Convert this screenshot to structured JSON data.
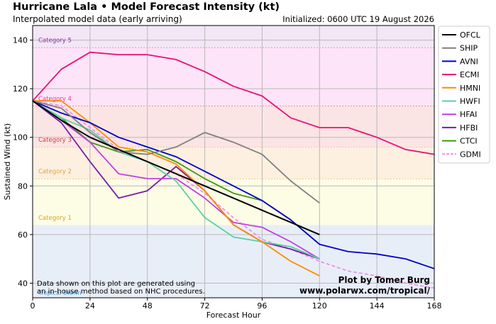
{
  "header": {
    "title": "Hurricane Lala • Model Forecast Intensity (kt)",
    "subtitle": "Interpolated model data (early arriving)",
    "initialized": "Initialized: 0600 UTC 19 August 2026"
  },
  "footer": {
    "note_line1": "Data shown on this plot are generated using",
    "note_line2": "an in-house method based on NHC procedures.",
    "credit_line1": "Plot by Tomer Burg",
    "credit_line2": "www.polarwx.com/tropical/"
  },
  "chart_data": {
    "type": "line",
    "title": "Hurricane Lala • Model Forecast Intensity (kt)",
    "subtitle": "Interpolated model data (early arriving)",
    "xlabel": "Forecast Hour",
    "ylabel": "Sustained Wind (kt)",
    "xlim": [
      0,
      168
    ],
    "ylim": [
      34,
      146
    ],
    "xticks": [
      0,
      24,
      48,
      72,
      96,
      120,
      144,
      168
    ],
    "yticks": [
      40,
      60,
      80,
      100,
      120,
      140
    ],
    "grid": true,
    "legend_position": "right outside",
    "bands": [
      {
        "label": "Tropical Storm",
        "from": 34,
        "to": 64,
        "color": "#e8eef8",
        "line": 34,
        "text_color": "#5a9fd4"
      },
      {
        "label": "Category 1",
        "from": 64,
        "to": 83,
        "color": "#fdfde6",
        "line": 83,
        "text_color": "#e0a020"
      },
      {
        "label": "Category 2",
        "from": 83,
        "to": 96,
        "color": "#fdf0e0",
        "line": 96,
        "text_color": "#e0a040"
      },
      {
        "label": "Category 3",
        "from": 96,
        "to": 113,
        "color": "#fbe4e4",
        "line": 113,
        "text_color": "#d04040"
      },
      {
        "label": "Category 4",
        "from": 113,
        "to": 137,
        "color": "#fde4f8",
        "line": 137,
        "text_color": "#e040a0"
      },
      {
        "label": "Category 5",
        "from": 137,
        "to": 146,
        "color": "#f3e6f6",
        "line": null,
        "text_color": "#9030a0"
      }
    ],
    "band_label_y": {
      "Tropical Storm": 36,
      "Category 1": 67,
      "Category 2": 86,
      "Category 3": 99,
      "Category 4": 116,
      "Category 5": 140
    },
    "series": [
      {
        "name": "OFCL",
        "color": "#000000",
        "dashed": false,
        "x": [
          0,
          12,
          24,
          36,
          48,
          60,
          72,
          84,
          96,
          108,
          120
        ],
        "y": [
          115,
          107,
          100,
          95,
          90,
          85,
          80,
          75,
          70,
          65,
          60
        ]
      },
      {
        "name": "SHIP",
        "color": "#808080",
        "dashed": false,
        "x": [
          0,
          12,
          24,
          36,
          48,
          60,
          72,
          84,
          96,
          108,
          120
        ],
        "y": [
          115,
          112,
          102,
          94,
          93,
          96,
          102,
          98,
          93,
          82,
          73
        ]
      },
      {
        "name": "AVNI",
        "color": "#0000cc",
        "dashed": false,
        "x": [
          0,
          12,
          24,
          36,
          48,
          60,
          72,
          84,
          96,
          108,
          120,
          132,
          144,
          156,
          168
        ],
        "y": [
          115,
          110,
          106,
          100,
          96,
          92,
          86,
          80,
          74,
          66,
          56,
          53,
          52,
          50,
          46
        ]
      },
      {
        "name": "ECMI",
        "color": "#e8107a",
        "dashed": false,
        "x": [
          0,
          12,
          24,
          36,
          48,
          60,
          72,
          84,
          96,
          108,
          120,
          132,
          144,
          156,
          168
        ],
        "y": [
          115,
          128,
          135,
          134,
          134,
          132,
          127,
          121,
          117,
          108,
          104,
          104,
          100,
          95,
          93
        ]
      },
      {
        "name": "HMNI",
        "color": "#ff8c00",
        "dashed": false,
        "x": [
          0,
          12,
          24,
          36,
          48,
          60,
          72,
          84,
          96,
          108,
          120
        ],
        "y": [
          115,
          115,
          106,
          96,
          94,
          89,
          78,
          64,
          57,
          49,
          43
        ]
      },
      {
        "name": "HWFI",
        "color": "#5ccfa5",
        "dashed": false,
        "x": [
          0,
          12,
          24,
          36,
          48,
          60,
          72,
          84,
          96,
          108,
          120
        ],
        "y": [
          115,
          108,
          103,
          94,
          90,
          82,
          67,
          59,
          57,
          55,
          50
        ]
      },
      {
        "name": "HFAI",
        "color": "#c040e0",
        "dashed": false,
        "x": [
          0,
          12,
          24,
          36,
          48,
          60,
          72,
          84,
          96,
          108,
          120
        ],
        "y": [
          115,
          107,
          98,
          85,
          83,
          83,
          75,
          65,
          63,
          57,
          50
        ]
      },
      {
        "name": "HFBI",
        "color": "#7a1aa8",
        "dashed": false,
        "x": [
          0,
          12,
          24,
          36,
          48,
          60,
          72,
          84,
          96,
          108,
          120
        ],
        "y": [
          115,
          106,
          90,
          75,
          78,
          88,
          78,
          64,
          57,
          54,
          50
        ]
      },
      {
        "name": "CTCI",
        "color": "#3a9a10",
        "dashed": false,
        "x": [
          0,
          12,
          24,
          36,
          48,
          60,
          72,
          84,
          96,
          108,
          120
        ],
        "y": [
          115,
          108,
          98,
          94,
          95,
          90,
          83,
          77,
          74,
          66,
          56
        ]
      },
      {
        "name": "GDMI",
        "color": "#f090e8",
        "dashed": true,
        "x": [
          0,
          12,
          24,
          36,
          48,
          60,
          72,
          84,
          96,
          108,
          120,
          132,
          144,
          156,
          168
        ],
        "y": [
          115,
          113,
          104,
          95,
          90,
          85,
          77,
          67,
          58,
          54,
          49,
          45,
          43,
          40,
          38
        ]
      }
    ]
  }
}
